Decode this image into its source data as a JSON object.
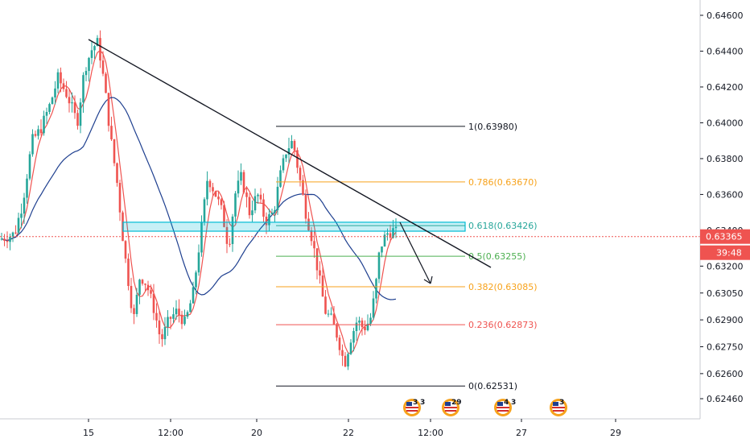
{
  "chart_data": {
    "type": "candlestick",
    "price_axis": {
      "ylim": [
        0.6238,
        0.6468
      ],
      "ticks": [
        "0.64600",
        "0.64400",
        "0.64200",
        "0.64000",
        "0.63800",
        "0.63600",
        "0.63400",
        "0.63200",
        "0.63050",
        "0.62900",
        "0.62750",
        "0.62600",
        "0.62460"
      ]
    },
    "time_axis": {
      "ticks": [
        "15",
        "12:00",
        "20",
        "22",
        "12:00",
        "27",
        "29"
      ]
    },
    "current_price": {
      "value": 0.63365,
      "label": "0.63365",
      "countdown": "39:48",
      "color": "#ef5350"
    },
    "fibonacci": {
      "levels": [
        {
          "ratio": 1,
          "label": "1(0.63980)",
          "price": 0.6398,
          "color": "#131722"
        },
        {
          "ratio": 0.786,
          "label": "0.786(0.63670)",
          "price": 0.6367,
          "color": "#f7a21b"
        },
        {
          "ratio": 0.618,
          "label": "0.618(0.63426)",
          "price": 0.63426,
          "color": "#26a69a"
        },
        {
          "ratio": 0.5,
          "label": "0.5(0.63255)",
          "price": 0.63255,
          "color": "#4caf50"
        },
        {
          "ratio": 0.382,
          "label": "0.382(0.63085)",
          "price": 0.63085,
          "color": "#f7a21b"
        },
        {
          "ratio": 0.236,
          "label": "0.236(0.62873)",
          "price": 0.62873,
          "color": "#ef5350"
        },
        {
          "ratio": 0,
          "label": "0(0.62531)",
          "price": 0.62531,
          "color": "#131722"
        }
      ]
    },
    "zone": {
      "price_top": 0.63445,
      "price_bottom": 0.63395,
      "color": "#00bcd4"
    },
    "trendline": {
      "from": {
        "x": "15",
        "price": 0.6447
      },
      "to": {
        "x": "after 22",
        "price": 0.6318
      }
    },
    "moving_averages": [
      {
        "color": "#ef5350",
        "kind": "fast"
      },
      {
        "color": "#1e3f8f",
        "kind": "slow"
      }
    ],
    "event_badges": [
      {
        "numbers": [
          "3",
          "3"
        ]
      },
      {
        "numbers": [
          "29"
        ]
      },
      {
        "numbers": [
          "4",
          "3"
        ]
      },
      {
        "numbers": [
          "3"
        ]
      }
    ],
    "colors": {
      "up": "#26a69a",
      "down": "#ef5350",
      "grid": "#f0f3fa",
      "axis": "#131722"
    }
  }
}
